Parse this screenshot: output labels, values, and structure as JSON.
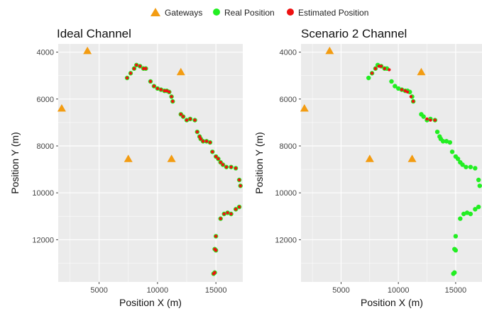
{
  "legend": {
    "items": [
      {
        "label": "Gateways",
        "color": "#f39c12",
        "shape": "triangle"
      },
      {
        "label": "Real Position",
        "color": "#22ee22",
        "shape": "circle"
      },
      {
        "label": "Estimated Position",
        "color": "#ee1111",
        "shape": "circle"
      }
    ]
  },
  "colors": {
    "panel_bg": "#ebebeb",
    "grid_major": "#ffffff",
    "gateway": "#f39c12",
    "real": "#22ee22",
    "estimated": "#ee1111"
  },
  "chart_data": [
    {
      "type": "scatter",
      "title": "Ideal Channel",
      "xlabel": "Position X (m)",
      "ylabel": "Position Y (m)",
      "xlim": [
        1500,
        17300
      ],
      "ylim": [
        3650,
        13800
      ],
      "y_reversed": true,
      "xticks": [
        5000,
        10000,
        15000
      ],
      "xtick_labels": [
        "5000",
        "10000",
        "15000"
      ],
      "yticks": [
        4000,
        6000,
        8000,
        10000,
        12000
      ],
      "ytick_labels": [
        "4000",
        "6000",
        "8000",
        "10000",
        "12000"
      ],
      "grid": true,
      "legend": "top",
      "series": [
        {
          "name": "Gateways",
          "shape": "triangle",
          "x": [
            4000,
            12000,
            1800,
            7500,
            11200
          ],
          "y": [
            3950,
            4850,
            6400,
            8550,
            8550
          ]
        },
        {
          "name": "Real Position",
          "shape": "circle",
          "x": [
            7400,
            7700,
            8000,
            8200,
            8500,
            8800,
            9000,
            9400,
            9700,
            10000,
            10300,
            10600,
            10800,
            11000,
            11200,
            11300,
            12000,
            12200,
            12500,
            12800,
            13200,
            13400,
            13600,
            13700,
            13900,
            14200,
            14500,
            14700,
            15000,
            15200,
            15400,
            15600,
            15900,
            16300,
            16700,
            17000,
            17100,
            17000,
            16700,
            16300,
            16000,
            15700,
            15400,
            15000,
            14900,
            15000,
            14900,
            14800
          ],
          "y": [
            5100,
            4900,
            4700,
            4550,
            4600,
            4700,
            4700,
            5250,
            5450,
            5550,
            5600,
            5650,
            5650,
            5700,
            5900,
            6100,
            6650,
            6750,
            6900,
            6850,
            6900,
            7400,
            7600,
            7700,
            7800,
            7800,
            7850,
            8250,
            8450,
            8550,
            8700,
            8800,
            8900,
            8900,
            8950,
            9450,
            9700,
            10600,
            10700,
            10900,
            10850,
            10900,
            11100,
            11850,
            12400,
            12450,
            13400,
            13450
          ]
        },
        {
          "name": "Estimated Position",
          "shape": "circle",
          "x": [
            7400,
            7700,
            8000,
            8200,
            8500,
            8800,
            9000,
            9400,
            9700,
            10000,
            10300,
            10600,
            10800,
            11000,
            11200,
            11300,
            12000,
            12200,
            12500,
            12800,
            13200,
            13400,
            13600,
            13700,
            13900,
            14200,
            14500,
            14700,
            15000,
            15200,
            15400,
            15600,
            15900,
            16300,
            16700,
            17000,
            17100,
            17000,
            16700,
            16300,
            16000,
            15700,
            15400,
            15000,
            14900,
            15000,
            14900,
            14800
          ],
          "y": [
            5100,
            4900,
            4700,
            4550,
            4600,
            4700,
            4700,
            5250,
            5450,
            5550,
            5600,
            5650,
            5650,
            5700,
            5900,
            6100,
            6650,
            6750,
            6900,
            6850,
            6900,
            7400,
            7600,
            7700,
            7800,
            7800,
            7850,
            8250,
            8450,
            8550,
            8700,
            8800,
            8900,
            8900,
            8950,
            9450,
            9700,
            10600,
            10700,
            10900,
            10850,
            10900,
            11100,
            11850,
            12400,
            12450,
            13400,
            13450
          ]
        }
      ]
    },
    {
      "type": "scatter",
      "title": "Scenario 2 Channel",
      "xlabel": "Position X (m)",
      "ylabel": "Position Y (m)",
      "xlim": [
        1500,
        17300
      ],
      "ylim": [
        3650,
        13800
      ],
      "y_reversed": true,
      "xticks": [
        5000,
        10000,
        15000
      ],
      "xtick_labels": [
        "5000",
        "10000",
        "15000"
      ],
      "yticks": [
        4000,
        6000,
        8000,
        10000,
        12000
      ],
      "ytick_labels": [
        "4000",
        "6000",
        "8000",
        "10000",
        "12000"
      ],
      "grid": true,
      "legend": "top",
      "series": [
        {
          "name": "Gateways",
          "shape": "triangle",
          "x": [
            4000,
            12000,
            1800,
            7500,
            11200
          ],
          "y": [
            3950,
            4850,
            6400,
            8550,
            8550
          ]
        },
        {
          "name": "Real Position",
          "shape": "circle",
          "x": [
            7400,
            7700,
            8000,
            8200,
            8500,
            8800,
            9000,
            9400,
            9700,
            10000,
            10300,
            10600,
            10800,
            11000,
            11200,
            11300,
            12000,
            12200,
            12500,
            12800,
            13200,
            13400,
            13600,
            13700,
            13900,
            14200,
            14500,
            14700,
            15000,
            15200,
            15400,
            15600,
            15900,
            16300,
            16700,
            17000,
            17100,
            17000,
            16700,
            16300,
            16000,
            15700,
            15400,
            15000,
            14900,
            15000,
            14900,
            14800
          ],
          "y": [
            5100,
            4900,
            4700,
            4550,
            4600,
            4700,
            4700,
            5250,
            5450,
            5550,
            5600,
            5650,
            5650,
            5700,
            5900,
            6100,
            6650,
            6750,
            6900,
            6850,
            6900,
            7400,
            7600,
            7700,
            7800,
            7800,
            7850,
            8250,
            8450,
            8550,
            8700,
            8800,
            8900,
            8900,
            8950,
            9450,
            9700,
            10600,
            10700,
            10900,
            10850,
            10900,
            11100,
            11850,
            12400,
            12450,
            13400,
            13450
          ]
        },
        {
          "name": "Estimated Position",
          "shape": "circle",
          "x": [
            7700,
            8000,
            8300,
            8500,
            8800,
            9200,
            10300,
            10600,
            10800,
            11100,
            11300,
            12500,
            12800,
            13200
          ],
          "y": [
            4900,
            4700,
            4600,
            4600,
            4700,
            4750,
            5600,
            5650,
            5700,
            5900,
            6100,
            6850,
            6900,
            6900
          ]
        }
      ]
    }
  ]
}
